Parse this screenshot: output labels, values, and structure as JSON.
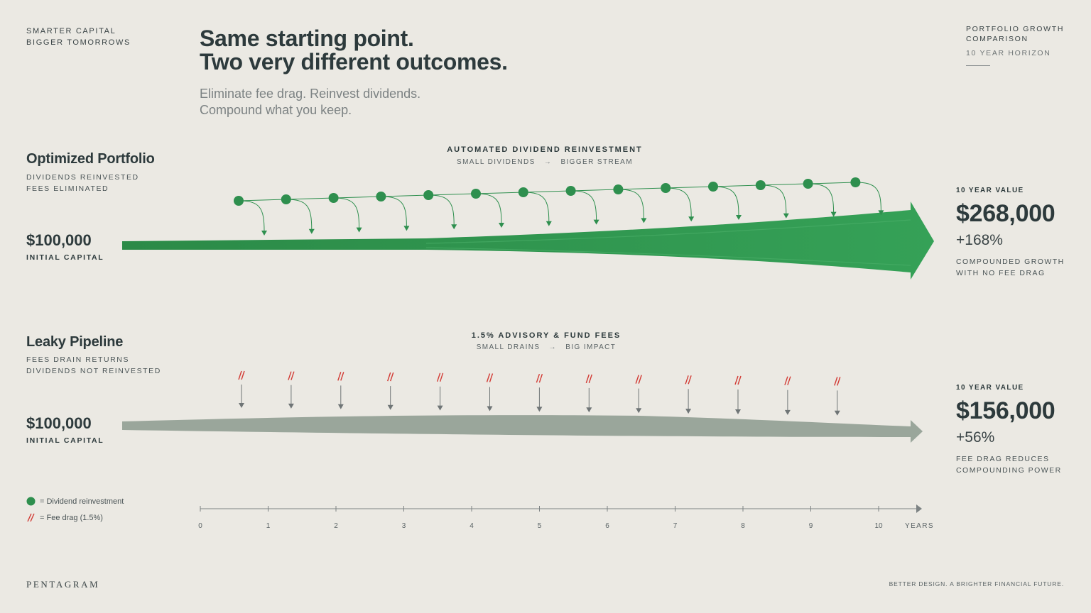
{
  "brand": {
    "line1": "SMARTER CAPITAL",
    "line2": "BIGGER TOMORROWS"
  },
  "headline": {
    "line1": "Same starting point.",
    "line2": "Two very different outcomes."
  },
  "subheadline": {
    "line1": "Eliminate fee drag. Reinvest dividends.",
    "line2": "Compound what you keep."
  },
  "top_right": {
    "line1": "PORTFOLIO GROWTH",
    "line2": "COMPARISON",
    "horizon": "10 YEAR HORIZON"
  },
  "optimized": {
    "title": "Optimized Portfolio",
    "sub1": "DIVIDENDS REINVESTED",
    "sub2": "FEES ELIMINATED",
    "capital": "$100,000",
    "capital_label": "INITIAL CAPITAL",
    "flow_heading": "AUTOMATED DIVIDEND REINVESTMENT",
    "flow_left": "SMALL DIVIDENDS",
    "flow_right": "BIGGER STREAM",
    "result_label": "10 YEAR VALUE",
    "result_value": "$268,000",
    "result_pct": "+168%",
    "note1": "COMPOUNDED GROWTH",
    "note2": "WITH NO FEE DRAG",
    "color": "#2e8f4e"
  },
  "leaky": {
    "title": "Leaky Pipeline",
    "sub1": "FEES DRAIN RETURNS",
    "sub2": "DIVIDENDS NOT REINVESTED",
    "capital": "$100,000",
    "capital_label": "INITIAL CAPITAL",
    "flow_heading": "1.5% ADVISORY & FUND FEES",
    "flow_left": "SMALL DRAINS",
    "flow_right": "BIG IMPACT",
    "result_label": "10 YEAR VALUE",
    "result_value": "$156,000",
    "result_pct": "+56%",
    "note1": "FEE DRAG REDUCES",
    "note2": "COMPOUNDING POWER",
    "color": "#9aa69b",
    "fee_color": "#d23a34"
  },
  "legend": {
    "dividend": "= Dividend reinvestment",
    "fee": "= Fee drag (1.5%)"
  },
  "axis": {
    "ticks": [
      "0",
      "1",
      "2",
      "3",
      "4",
      "5",
      "6",
      "7",
      "8",
      "9",
      "10"
    ],
    "unit": "YEARS"
  },
  "footer": {
    "left": "PENTAGRAM",
    "right": "BETTER DESIGN. A BRIGHTER FINANCIAL FUTURE."
  },
  "icons": {
    "arrow": "arrow-right-icon",
    "dividend": "green-dot-icon",
    "fee": "red-slash-icon"
  }
}
